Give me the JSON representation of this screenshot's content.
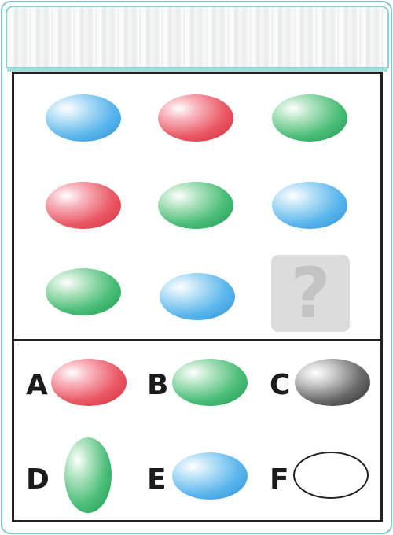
{
  "puzzle": {
    "grid": [
      [
        "blue",
        "red",
        "green"
      ],
      [
        "red",
        "green",
        "blue"
      ],
      [
        "green",
        "blue",
        "missing"
      ]
    ],
    "question_mark": "?"
  },
  "options": [
    {
      "label": "A",
      "shape": "ellipse",
      "color": "red",
      "orientation": "horizontal"
    },
    {
      "label": "B",
      "shape": "ellipse",
      "color": "green",
      "orientation": "horizontal"
    },
    {
      "label": "C",
      "shape": "ellipse",
      "color": "black",
      "orientation": "horizontal"
    },
    {
      "label": "D",
      "shape": "ellipse",
      "color": "green",
      "orientation": "vertical"
    },
    {
      "label": "E",
      "shape": "ellipse",
      "color": "blue",
      "orientation": "horizontal"
    },
    {
      "label": "F",
      "shape": "ellipse",
      "color": "none",
      "orientation": "horizontal",
      "style": "outline"
    }
  ],
  "colors": {
    "frame": "#7fc7c8",
    "blue": "#2a8fd8",
    "red": "#d6283a",
    "green": "#1a9a4e",
    "black": "#262626",
    "placeholder": "#dcdcdc"
  }
}
